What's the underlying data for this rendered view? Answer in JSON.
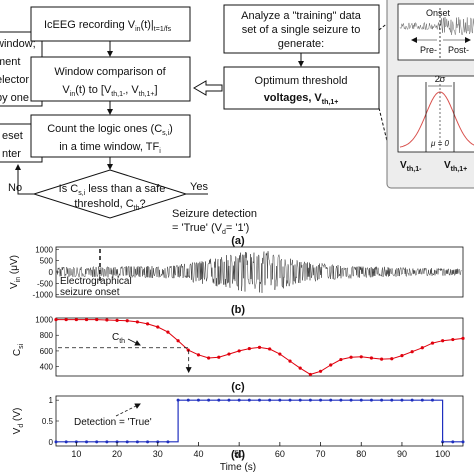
{
  "flowchart": {
    "box_recording": {
      "line1": "IcEEG recording V",
      "sub": "in",
      "rest": "(t)|",
      "tail": "t=1/fs"
    },
    "box_compare": {
      "line1": "Window comparison of",
      "line2": "V",
      "line2_sub": "in",
      "line2_rest": "(t) to [V",
      "sub1": "th,1-",
      "mid": ", V",
      "sub2": "th,1+",
      "end": "]"
    },
    "box_count": {
      "line1": "Count the logic ones (C",
      "sub1": "s,i",
      "line1_end": ")",
      "line2": "in a time window, TF",
      "sub2": "i"
    },
    "decision": {
      "line1": "Is C",
      "sub1": "s,i",
      "line1_end": " less than a safe",
      "line2": "threshold, C",
      "sub2": "th",
      "line2_end": "?"
    },
    "yes_label": "Yes",
    "no_label": "No",
    "detection": {
      "line1": "Seizure detection",
      "line2a": "= 'True' (V",
      "sub": "d",
      "line2b": "= '1')"
    },
    "analyze_box": {
      "line1": "Analyze a \"training\" data",
      "line2": "set of a single seizure to",
      "line3": "generate:"
    },
    "optimum_box": {
      "line1": "Optimum threshold",
      "line2": "voltages, V",
      "sub": "th,1+"
    },
    "left_box1": {
      "lines": [
        "window;",
        "ment",
        "elector",
        "by one"
      ]
    },
    "left_box2": {
      "lines": [
        "eset",
        "nter"
      ]
    }
  },
  "inset": {
    "onset": "Onset",
    "pre": "Pre-",
    "post": "Post-",
    "sigma": "2σ",
    "mu": "μ = 0",
    "vth_minus": "V",
    "vth_minus_sub": "th,1-",
    "vth_plus": "V",
    "vth_plus_sub": "th,1+"
  },
  "panel_labels": {
    "a": "(a)",
    "b": "(b)",
    "c": "(c)",
    "d": "(d)"
  },
  "plot_b": {
    "ylabel_main": "V",
    "ylabel_sub": "in",
    "ylabel_unit": " (μV)",
    "y_ticks": [
      "1000",
      "500",
      "0",
      "-500",
      "-1000"
    ],
    "annotation": [
      "Electrographical",
      "seizure onset"
    ]
  },
  "plot_c": {
    "ylabel_main": "C",
    "ylabel_sub": "si",
    "y_ticks": [
      "1000",
      "800",
      "600",
      "400"
    ],
    "cth_label": "C",
    "cth_sub": "th"
  },
  "plot_d": {
    "ylabel_main": "V",
    "ylabel_sub": "d",
    "ylabel_unit": " (V)",
    "y_ticks": [
      "1",
      "0.5",
      "0"
    ],
    "annotation": "Detection = 'True'"
  },
  "x_axis": {
    "ticks": [
      "10",
      "20",
      "30",
      "40",
      "50",
      "60",
      "70",
      "80",
      "90",
      "100"
    ],
    "label": "Time (s)"
  },
  "chart_data": [
    {
      "type": "line",
      "title": "",
      "xlabel": "",
      "ylabel": "Vin (μV)",
      "xlim": [
        5,
        105
      ],
      "ylim": [
        -1100,
        1100
      ],
      "x": [
        5,
        105
      ],
      "series": [
        {
          "envelope_uV": [
            [
              5,
              220
            ],
            [
              33,
              280
            ],
            [
              45,
              650
            ],
            [
              50,
              900
            ],
            [
              57,
              950
            ],
            [
              65,
              500
            ],
            [
              75,
              300
            ],
            [
              90,
              200
            ],
            [
              105,
              150
            ]
          ]
        }
      ],
      "onset_x": 33
    },
    {
      "type": "line",
      "title": "",
      "xlabel": "",
      "ylabel": "Csi",
      "xlim": [
        5,
        105
      ],
      "ylim": [
        280,
        1020
      ],
      "threshold_cth": 640,
      "x": [
        5,
        7.5,
        10,
        12.5,
        15,
        17.5,
        20,
        22.5,
        25,
        27.5,
        30,
        32.5,
        35,
        37.5,
        40,
        42.5,
        45,
        47.5,
        50,
        52.5,
        55,
        57.5,
        60,
        62.5,
        65,
        67.5,
        70,
        72.5,
        75,
        77.5,
        80,
        82.5,
        85,
        87.5,
        90,
        92.5,
        95,
        97.5,
        100,
        102.5,
        105
      ],
      "series": [
        {
          "color": "#e0000d",
          "values": [
            1000,
            1000,
            1000,
            1000,
            1000,
            995,
            990,
            985,
            970,
            945,
            905,
            840,
            730,
            610,
            550,
            510,
            520,
            560,
            600,
            630,
            645,
            625,
            560,
            470,
            380,
            300,
            340,
            420,
            490,
            520,
            525,
            510,
            495,
            500,
            540,
            590,
            640,
            700,
            730,
            745,
            760
          ]
        }
      ]
    },
    {
      "type": "line",
      "title": "",
      "xlabel": "Time (s)",
      "ylabel": "Vd (V)",
      "xlim": [
        5,
        105
      ],
      "ylim": [
        -0.1,
        1.1
      ],
      "x": [
        5,
        7.5,
        10,
        12.5,
        15,
        17.5,
        20,
        22.5,
        25,
        27.5,
        30,
        32.5,
        35,
        37.5,
        40,
        42.5,
        45,
        47.5,
        50,
        52.5,
        55,
        57.5,
        60,
        62.5,
        65,
        67.5,
        70,
        72.5,
        75,
        77.5,
        80,
        82.5,
        85,
        87.5,
        90,
        92.5,
        95,
        97.5,
        100,
        102.5,
        105
      ],
      "series": [
        {
          "color": "#1f2fbf",
          "values": [
            0,
            0,
            0,
            0,
            0,
            0,
            0,
            0,
            0,
            0,
            0,
            0,
            1,
            1,
            1,
            1,
            1,
            1,
            1,
            1,
            1,
            1,
            1,
            1,
            1,
            1,
            1,
            1,
            1,
            1,
            1,
            1,
            1,
            1,
            1,
            1,
            1,
            1,
            0,
            0,
            0
          ]
        }
      ]
    }
  ]
}
